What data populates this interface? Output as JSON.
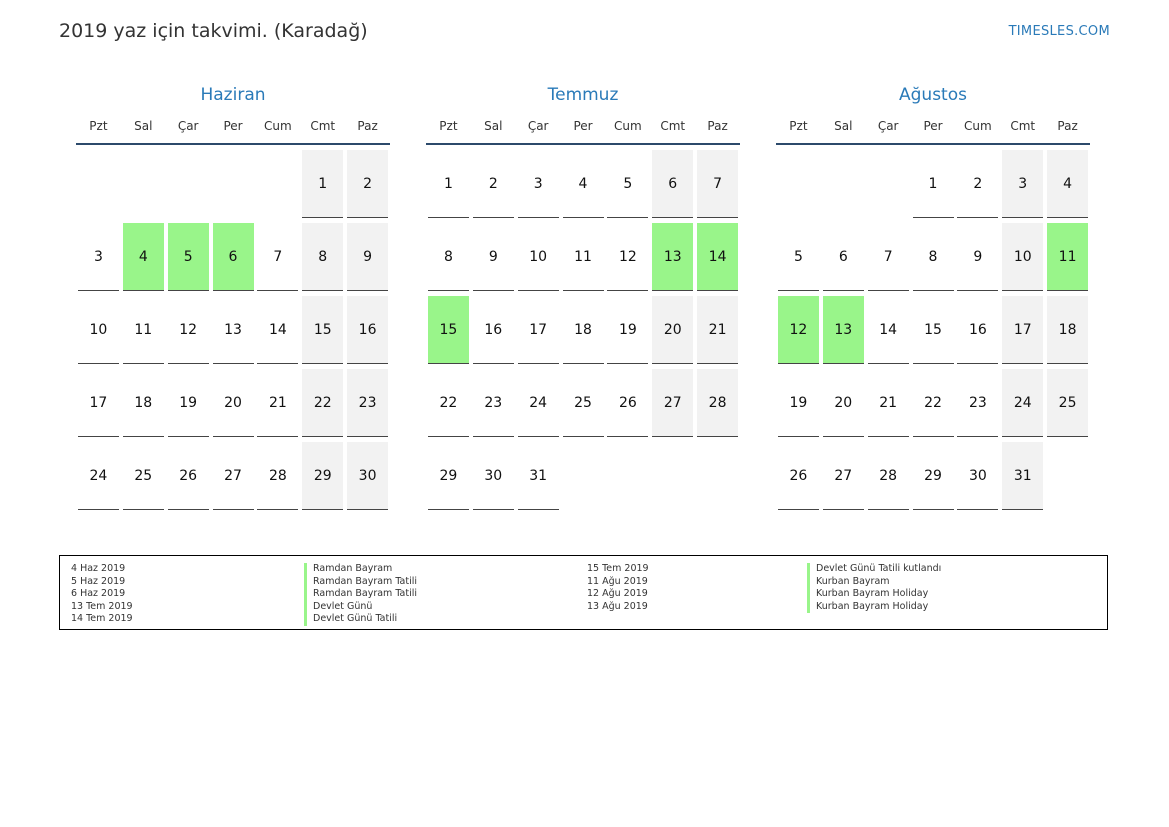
{
  "header": {
    "title": "2019 yaz için takvimi. (Karadağ)",
    "brand": "TIMESLES.COM"
  },
  "colors": {
    "accent": "#2a7ab8",
    "holiday": "#99f58a",
    "weekend": "#f2f2f2"
  },
  "weekday_labels": [
    "Pzt",
    "Sal",
    "Çar",
    "Per",
    "Cum",
    "Cmt",
    "Paz"
  ],
  "months": [
    {
      "name": "Haziran",
      "start_offset": 5,
      "days": 30,
      "holidays": [
        4,
        5,
        6
      ]
    },
    {
      "name": "Temmuz",
      "start_offset": 0,
      "days": 31,
      "holidays": [
        13,
        14,
        15
      ]
    },
    {
      "name": "Ağustos",
      "start_offset": 3,
      "days": 31,
      "holidays": [
        11,
        12,
        13
      ]
    }
  ],
  "legend": {
    "left": [
      {
        "date": "4 Haz 2019",
        "name": "Ramdan Bayram"
      },
      {
        "date": "5 Haz 2019",
        "name": "Ramdan Bayram Tatili"
      },
      {
        "date": "6 Haz 2019",
        "name": "Ramdan Bayram Tatili"
      },
      {
        "date": "13 Tem 2019",
        "name": "Devlet Günü"
      },
      {
        "date": "14 Tem 2019",
        "name": "Devlet Günü Tatili"
      }
    ],
    "right": [
      {
        "date": "15 Tem 2019",
        "name": "Devlet Günü Tatili kutlandı"
      },
      {
        "date": "11 Ağu 2019",
        "name": "Kurban Bayram"
      },
      {
        "date": "12 Ağu 2019",
        "name": "Kurban Bayram Holiday"
      },
      {
        "date": "13 Ağu 2019",
        "name": "Kurban Bayram Holiday"
      }
    ]
  }
}
